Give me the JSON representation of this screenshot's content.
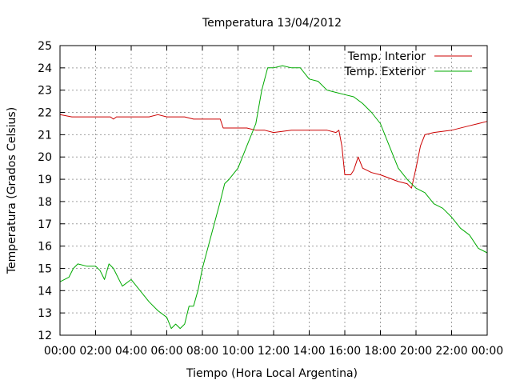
{
  "chart_data": {
    "type": "line",
    "title": "Temperatura 13/04/2012",
    "xlabel": "Tiempo (Hora Local Argentina)",
    "ylabel": "Temperatura (Grados Celsius)",
    "xlim": [
      "00:00",
      "24:00"
    ],
    "ylim": [
      12,
      25
    ],
    "x_ticks": [
      "00:00",
      "02:00",
      "04:00",
      "06:00",
      "08:00",
      "10:00",
      "12:00",
      "14:00",
      "16:00",
      "18:00",
      "20:00",
      "22:00",
      "00:00"
    ],
    "y_ticks": [
      12,
      13,
      14,
      15,
      16,
      17,
      18,
      19,
      20,
      21,
      22,
      23,
      24,
      25
    ],
    "grid": true,
    "legend_position": "top-right",
    "series": [
      {
        "name": "Temp. Interior",
        "color": "#cc0000",
        "x": [
          "00:00",
          "00:40",
          "01:00",
          "02:00",
          "02:50",
          "03:00",
          "03:10",
          "04:00",
          "05:00",
          "05:30",
          "06:00",
          "07:00",
          "07:30",
          "08:00",
          "09:00",
          "09:10",
          "10:00",
          "10:30",
          "11:00",
          "11:30",
          "12:00",
          "13:00",
          "14:00",
          "15:00",
          "15:30",
          "15:40",
          "15:50",
          "16:00",
          "16:20",
          "16:30",
          "16:45",
          "17:00",
          "17:30",
          "18:00",
          "19:00",
          "19:30",
          "19:45",
          "20:00",
          "20:15",
          "20:30",
          "21:00",
          "22:00",
          "23:00",
          "23:30",
          "24:00"
        ],
        "values": [
          21.9,
          21.8,
          21.8,
          21.8,
          21.8,
          21.7,
          21.8,
          21.8,
          21.8,
          21.9,
          21.8,
          21.8,
          21.7,
          21.7,
          21.7,
          21.3,
          21.3,
          21.3,
          21.2,
          21.2,
          21.1,
          21.2,
          21.2,
          21.2,
          21.1,
          21.2,
          20.5,
          19.2,
          19.2,
          19.4,
          20.0,
          19.5,
          19.3,
          19.2,
          18.9,
          18.8,
          18.6,
          19.5,
          20.5,
          21.0,
          21.1,
          21.2,
          21.4,
          21.5,
          21.6
        ]
      },
      {
        "name": "Temp. Exterior",
        "color": "#00aa00",
        "x": [
          "00:00",
          "00:30",
          "00:45",
          "01:00",
          "01:30",
          "02:00",
          "02:15",
          "02:30",
          "02:45",
          "03:00",
          "03:30",
          "04:00",
          "04:30",
          "05:00",
          "05:30",
          "06:00",
          "06:15",
          "06:30",
          "06:45",
          "07:00",
          "07:15",
          "07:30",
          "07:45",
          "08:00",
          "08:30",
          "09:00",
          "09:15",
          "09:30",
          "10:00",
          "10:30",
          "11:00",
          "11:20",
          "11:40",
          "12:00",
          "12:30",
          "13:00",
          "13:30",
          "14:00",
          "14:30",
          "15:00",
          "15:30",
          "16:00",
          "16:30",
          "17:00",
          "17:30",
          "18:00",
          "18:30",
          "19:00",
          "19:30",
          "20:00",
          "20:30",
          "21:00",
          "21:30",
          "22:00",
          "22:30",
          "23:00",
          "23:30",
          "24:00"
        ],
        "values": [
          14.4,
          14.6,
          15.0,
          15.2,
          15.1,
          15.1,
          14.9,
          14.5,
          15.2,
          15.0,
          14.2,
          14.5,
          14.0,
          13.5,
          13.1,
          12.8,
          12.3,
          12.5,
          12.3,
          12.5,
          13.3,
          13.3,
          14.0,
          15.0,
          16.5,
          18.0,
          18.8,
          19.0,
          19.5,
          20.5,
          21.5,
          23.0,
          24.0,
          24.0,
          24.1,
          24.0,
          24.0,
          23.5,
          23.4,
          23.0,
          22.9,
          22.8,
          22.7,
          22.4,
          22.0,
          21.5,
          20.5,
          19.5,
          19.0,
          18.6,
          18.4,
          17.9,
          17.7,
          17.3,
          16.8,
          16.5,
          15.9,
          15.7
        ]
      }
    ]
  }
}
